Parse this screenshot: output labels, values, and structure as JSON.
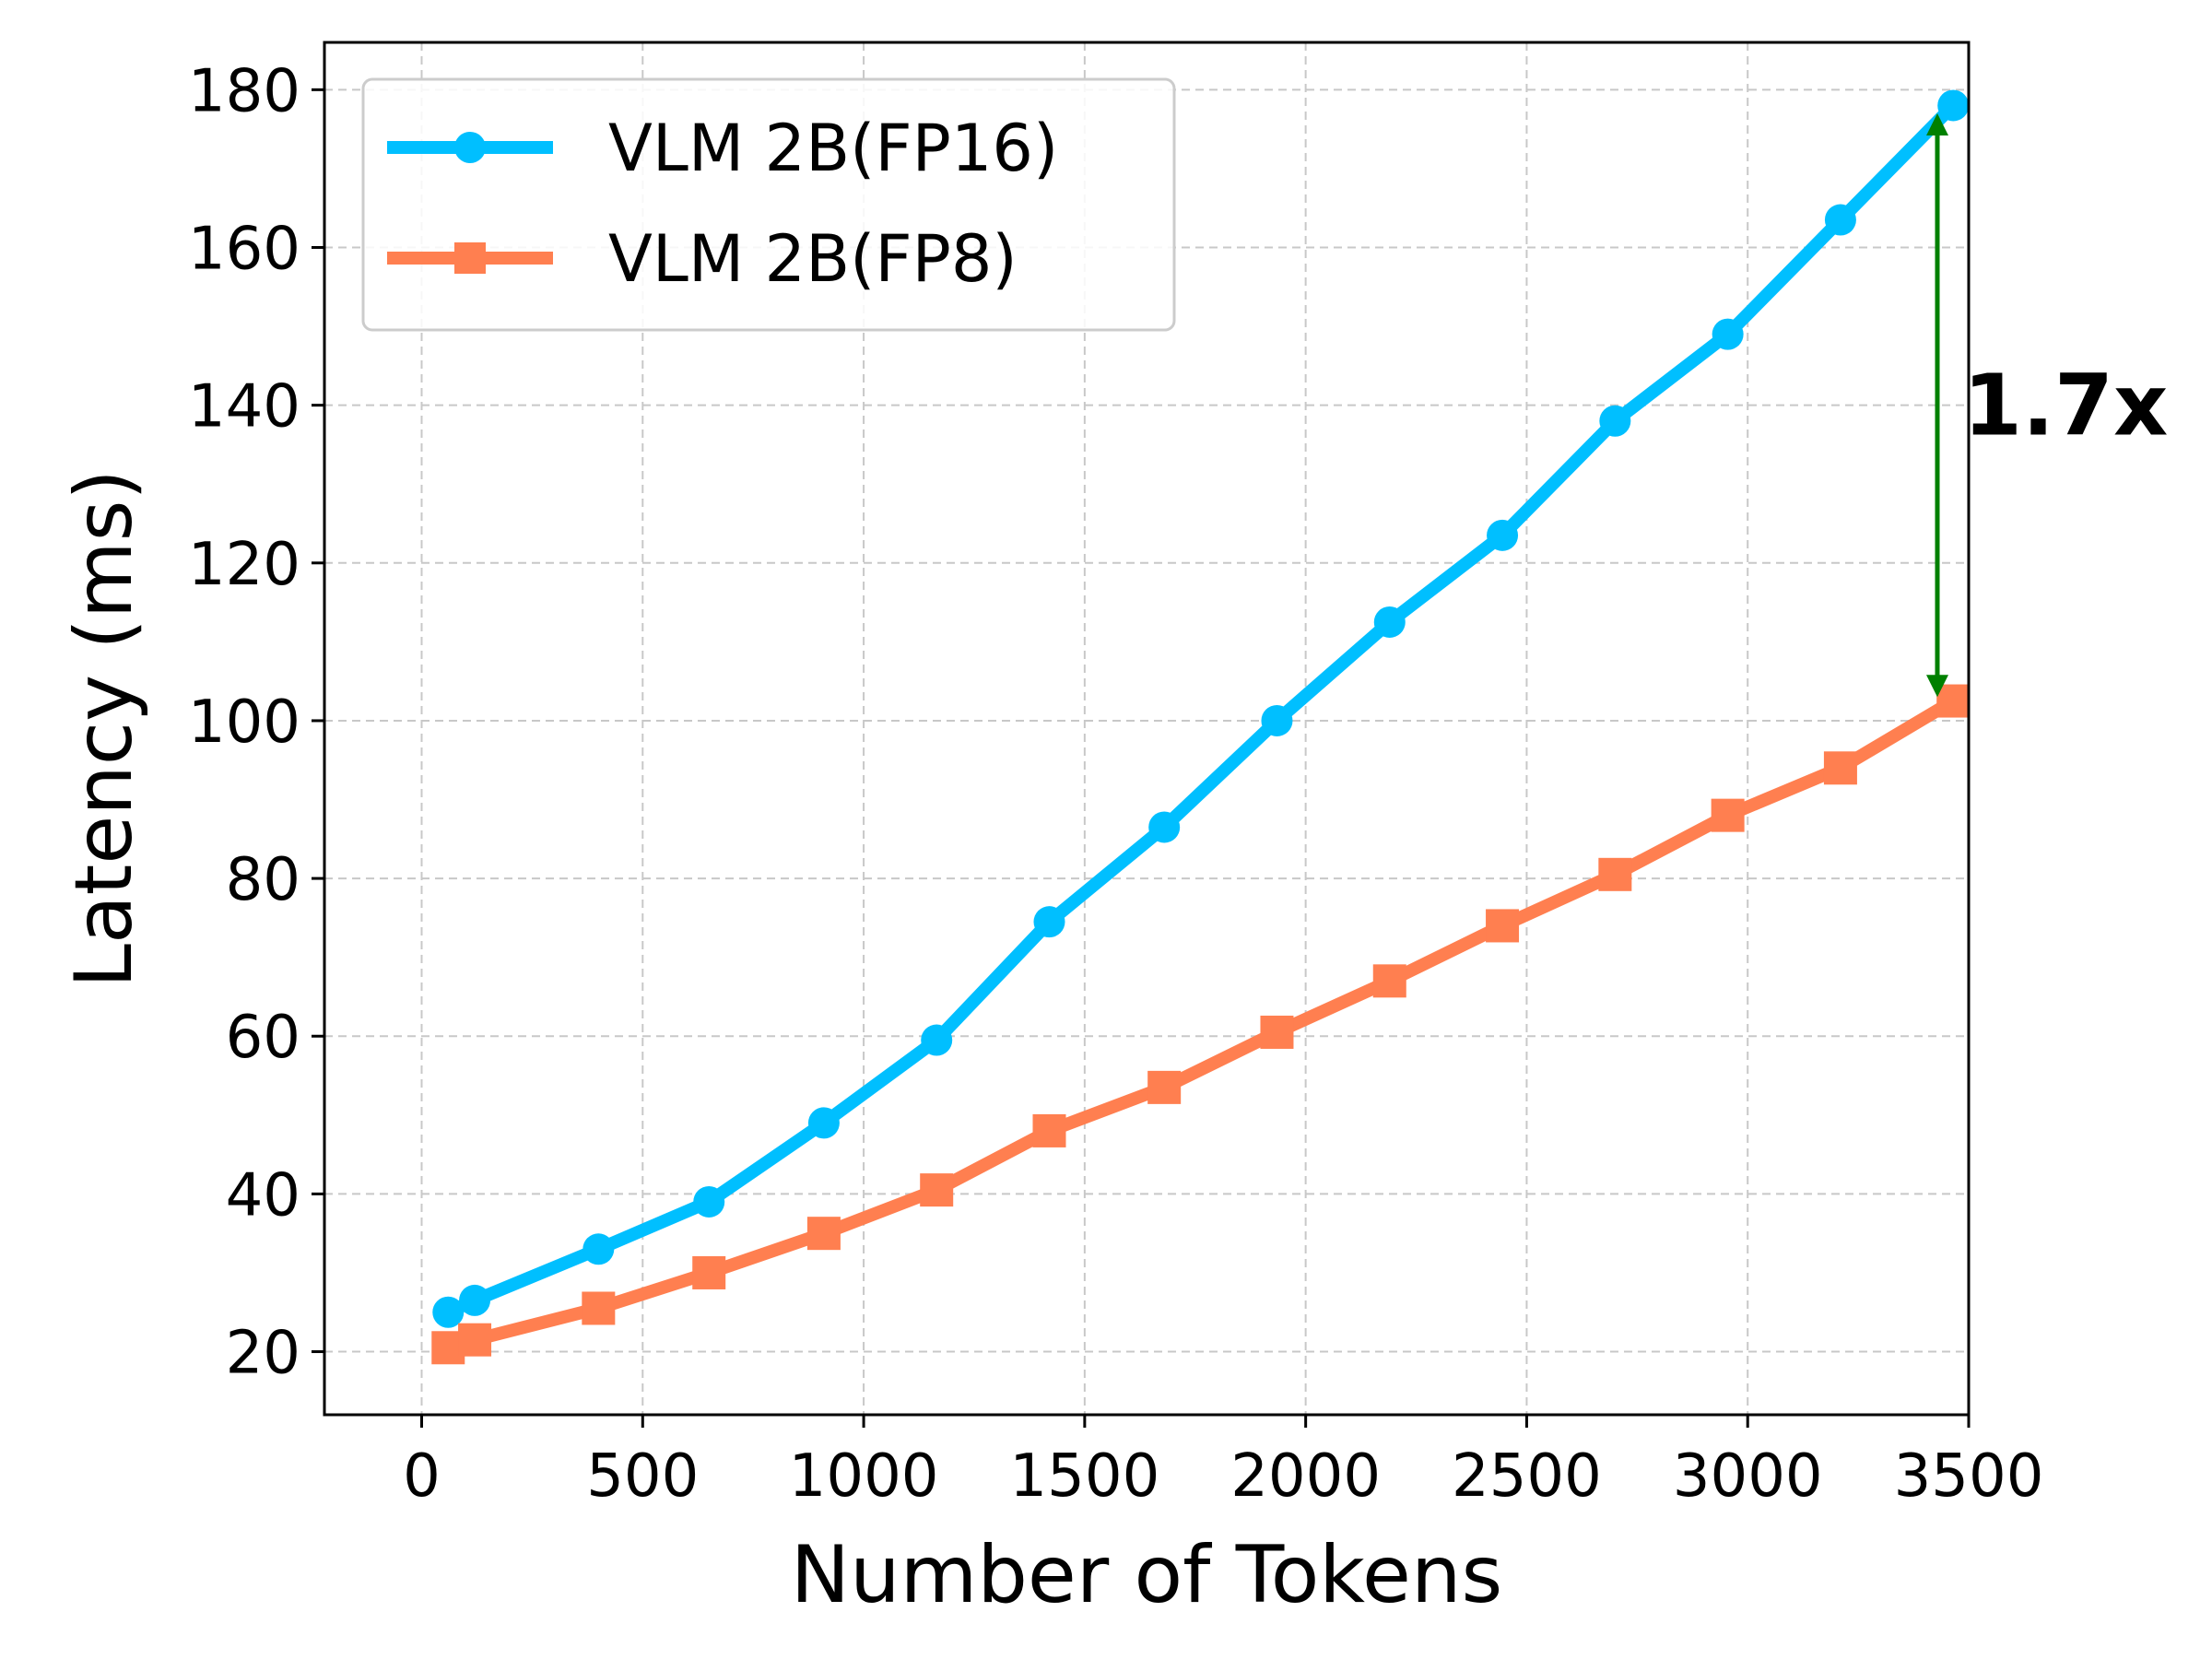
{
  "chart_data": {
    "type": "line",
    "title": "",
    "xlabel": "Number of Tokens",
    "ylabel": "Latency (ms)",
    "xlim": [
      -220,
      3500
    ],
    "ylim": [
      12,
      186
    ],
    "xticks": [
      0,
      500,
      1000,
      1500,
      2000,
      2500,
      3000,
      3500
    ],
    "yticks": [
      20,
      40,
      60,
      80,
      100,
      120,
      140,
      160,
      180
    ],
    "grid": true,
    "legend_position": "top-left",
    "series": [
      {
        "name": "VLM 2B(FP16)",
        "color": "#00bfff",
        "marker": "circle",
        "x": [
          60,
          120,
          400,
          650,
          910,
          1165,
          1420,
          1680,
          1935,
          2190,
          2445,
          2700,
          2955,
          3210,
          3465
        ],
        "y": [
          25,
          26.5,
          33,
          39,
          49,
          59.5,
          74.5,
          86.5,
          100,
          112.5,
          123.5,
          138,
          149,
          163.5,
          178
        ]
      },
      {
        "name": "VLM 2B(FP8)",
        "color": "#ff7f50",
        "marker": "square",
        "x": [
          60,
          120,
          400,
          650,
          910,
          1165,
          1420,
          1680,
          1935,
          2190,
          2445,
          2700,
          2955,
          3210,
          3465
        ],
        "y": [
          20.5,
          21.5,
          25.5,
          30,
          35,
          40.5,
          48,
          53.5,
          60.5,
          67,
          74,
          80.5,
          88,
          94,
          102.5
        ]
      }
    ],
    "annotations": [
      {
        "text": "1.7x",
        "color": "#008000",
        "from_y": 103,
        "to_y": 177,
        "style": "double-arrow"
      }
    ]
  }
}
